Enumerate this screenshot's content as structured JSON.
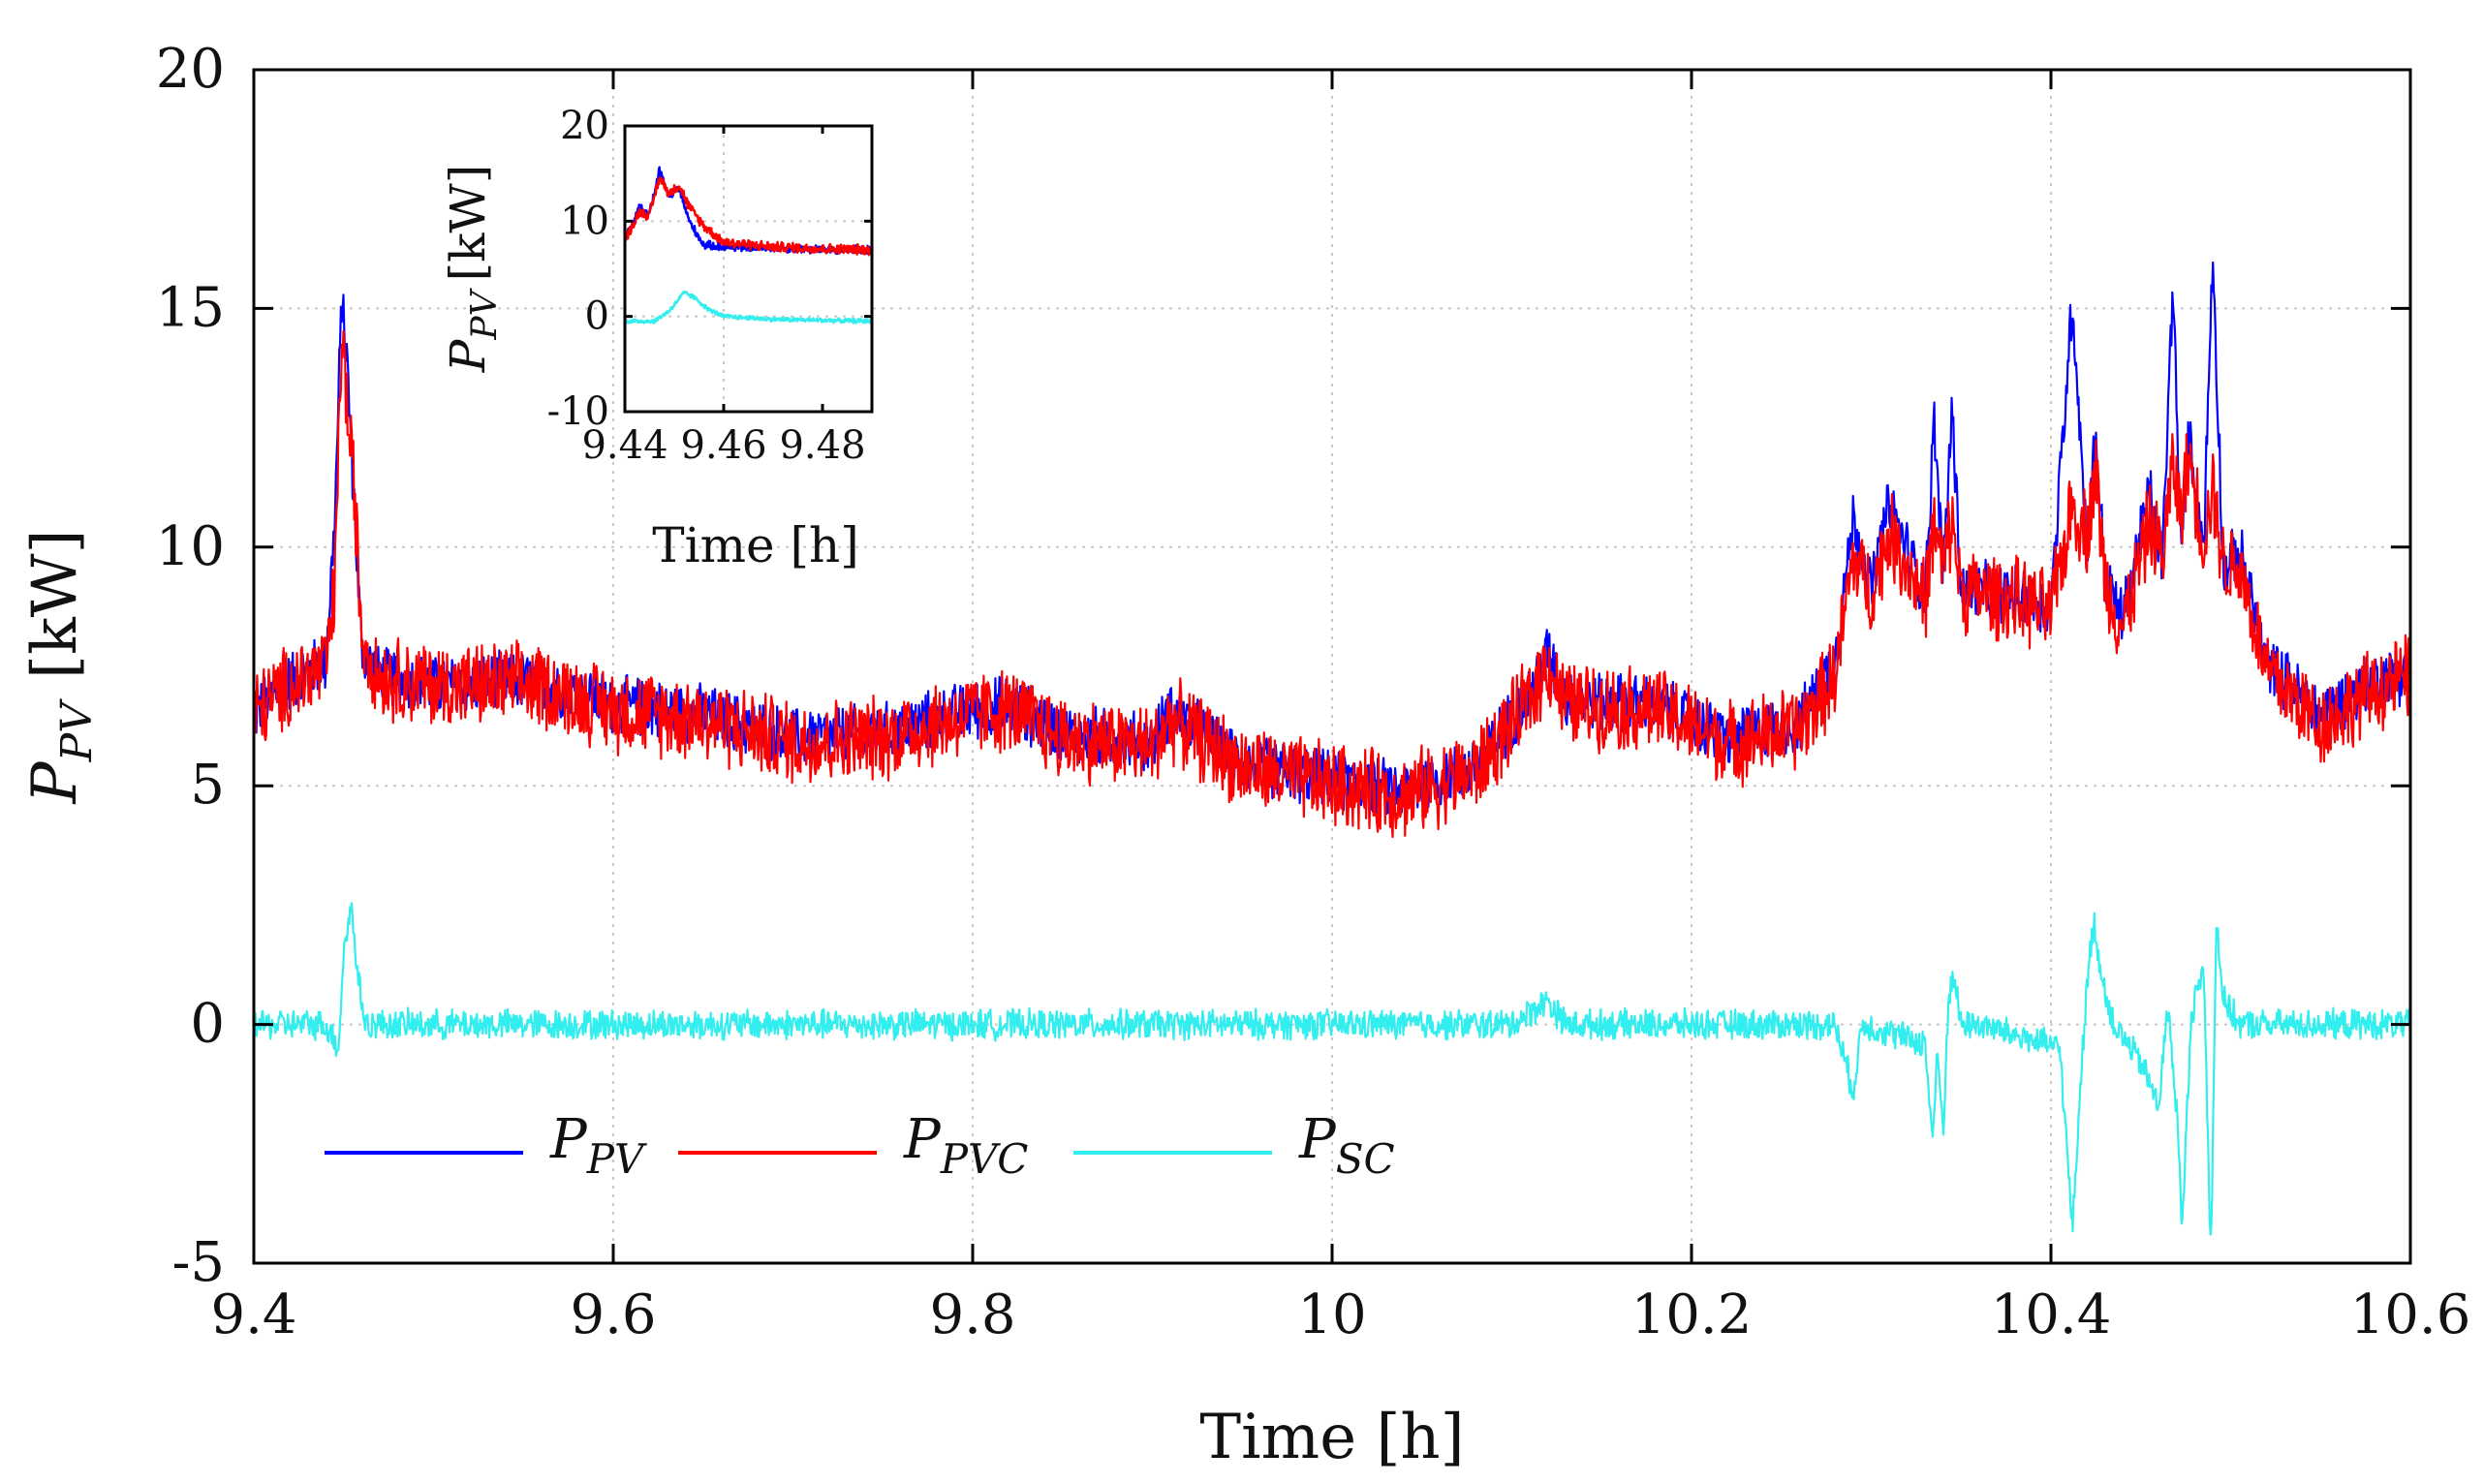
{
  "chart_data": [
    {
      "type": "line",
      "title": "",
      "xlabel": "Time [h]",
      "ylabel_main": "P",
      "ylabel_sub": "PV",
      "ylabel_unit": "[kW]",
      "xlim": [
        9.4,
        10.6
      ],
      "ylim": [
        -5,
        20
      ],
      "x_ticks": [
        9.4,
        9.6,
        9.8,
        10,
        10.2,
        10.4,
        10.6
      ],
      "x_tick_labels": [
        "9.4",
        "9.6",
        "9.8",
        "10",
        "10.2",
        "10.4",
        "10.6"
      ],
      "y_ticks": [
        -5,
        0,
        5,
        10,
        15,
        20
      ],
      "y_tick_labels": [
        "-5",
        "0",
        "5",
        "10",
        "15",
        "20"
      ],
      "grid": true,
      "legend_placement": "bottom-left",
      "series": [
        {
          "name": "P_PV",
          "label_main": "P",
          "label_sub": "PV",
          "color": "#0000ff",
          "noise": 0.7,
          "x": [
            9.4,
            9.42,
            9.44,
            9.445,
            9.449,
            9.452,
            9.456,
            9.46,
            9.47,
            9.5,
            9.56,
            9.6,
            9.65,
            9.7,
            9.75,
            9.8,
            9.82,
            9.85,
            9.9,
            9.91,
            9.95,
            10,
            10.04,
            10.08,
            10.11,
            10.12,
            10.13,
            10.18,
            10.22,
            10.26,
            10.28,
            10.29,
            10.3,
            10.31,
            10.33,
            10.335,
            10.34,
            10.345,
            10.35,
            10.38,
            10.4,
            10.412,
            10.42,
            10.425,
            10.43,
            10.44,
            10.455,
            10.462,
            10.468,
            10.472,
            10.477,
            10.485,
            10.49,
            10.496,
            10.505,
            10.52,
            10.55,
            10.58,
            10.6
          ],
          "y": [
            6.5,
            7.2,
            7.6,
            10.5,
            15.3,
            13.8,
            10.8,
            7.8,
            7.3,
            7.1,
            7.2,
            6.7,
            6.5,
            6.0,
            6.1,
            6.6,
            6.7,
            6.1,
            5.9,
            6.6,
            5.5,
            5.1,
            4.9,
            5.4,
            6.9,
            7.8,
            6.8,
            6.7,
            6.0,
            6.3,
            7.7,
            10.6,
            9.1,
            10.9,
            9.0,
            12.6,
            9.5,
            12.9,
            9.1,
            9.0,
            8.7,
            15.2,
            10.0,
            12.4,
            9.3,
            8.5,
            11.2,
            9.7,
            15.6,
            10.1,
            12.3,
            10.0,
            16.2,
            9.5,
            9.9,
            7.6,
            6.5,
            7.2,
            7.4
          ]
        },
        {
          "name": "P_PVC",
          "label_main": "P",
          "label_sub": "PVC",
          "color": "#ff0000",
          "noise": 1.0,
          "x": [
            9.4,
            9.42,
            9.44,
            9.445,
            9.449,
            9.452,
            9.456,
            9.46,
            9.47,
            9.5,
            9.56,
            9.6,
            9.65,
            9.7,
            9.75,
            9.8,
            9.82,
            9.85,
            9.9,
            9.91,
            9.95,
            10,
            10.04,
            10.08,
            10.11,
            10.12,
            10.13,
            10.18,
            10.22,
            10.26,
            10.28,
            10.29,
            10.3,
            10.31,
            10.33,
            10.335,
            10.34,
            10.345,
            10.35,
            10.38,
            10.4,
            10.412,
            10.42,
            10.425,
            10.43,
            10.44,
            10.455,
            10.462,
            10.468,
            10.472,
            10.477,
            10.485,
            10.49,
            10.496,
            10.505,
            10.52,
            10.55,
            10.58,
            10.6
          ],
          "y": [
            6.5,
            7.1,
            7.5,
            9.0,
            14.7,
            12.8,
            11.2,
            8.2,
            7.3,
            7.1,
            7.1,
            6.6,
            6.4,
            5.9,
            6.0,
            6.5,
            6.6,
            6.0,
            5.8,
            6.4,
            5.4,
            5.0,
            4.8,
            5.3,
            6.8,
            7.6,
            6.7,
            6.6,
            5.9,
            6.2,
            7.3,
            9.8,
            9.0,
            10.3,
            8.9,
            10.4,
            9.5,
            10.6,
            9.1,
            8.9,
            8.6,
            10.9,
            10.3,
            11.6,
            9.3,
            8.3,
            10.5,
            9.8,
            11.8,
            10.7,
            11.9,
            10.1,
            11.3,
            9.6,
            9.6,
            7.4,
            6.3,
            7.0,
            7.3
          ]
        },
        {
          "name": "P_SC",
          "label_main": "P",
          "label_sub": "SC",
          "color": "#33eeee",
          "noise": 0.35,
          "x": [
            9.4,
            9.44,
            9.447,
            9.45,
            9.454,
            9.458,
            9.462,
            9.5,
            9.9,
            10.1,
            10.12,
            10.13,
            10.28,
            10.29,
            10.295,
            10.33,
            10.334,
            10.337,
            10.34,
            10.343,
            10.346,
            10.35,
            10.36,
            10.405,
            10.412,
            10.416,
            10.42,
            10.424,
            10.428,
            10.435,
            10.45,
            10.46,
            10.465,
            10.47,
            10.473,
            10.478,
            10.485,
            10.489,
            10.492,
            10.496,
            10.505,
            10.55,
            10.6
          ],
          "y": [
            0,
            0,
            -0.5,
            1.5,
            2.5,
            1.0,
            0,
            0,
            0,
            0,
            0.5,
            0,
            0,
            -1.4,
            0,
            -0.4,
            -2.4,
            -0.6,
            -2.3,
            0.6,
            1.0,
            0,
            0,
            -0.5,
            -4.3,
            -1.5,
            0.8,
            2.2,
            1.0,
            0,
            -0.8,
            -1.7,
            0.4,
            -1.8,
            -4.3,
            0.2,
            1.2,
            -4.9,
            2.2,
            0.5,
            0,
            0,
            0
          ]
        }
      ]
    },
    {
      "type": "line",
      "title": "",
      "xlabel": "Time [h]",
      "ylabel_main": "P",
      "ylabel_sub": "PV",
      "ylabel_unit": "[kW]",
      "xlim": [
        9.44,
        9.49
      ],
      "ylim": [
        -10,
        20
      ],
      "x_ticks": [
        9.44,
        9.46,
        9.48
      ],
      "x_tick_labels": [
        "9.44",
        "9.46",
        "9.48"
      ],
      "y_ticks": [
        -10,
        0,
        10,
        20
      ],
      "y_tick_labels": [
        "-10",
        "0",
        "10",
        "20"
      ],
      "grid": true,
      "series": [
        {
          "name": "P_PV",
          "color": "#0000ff",
          "noise": 0.5,
          "x": [
            9.44,
            9.443,
            9.445,
            9.447,
            9.449,
            9.451,
            9.453,
            9.456,
            9.46,
            9.47,
            9.48,
            9.49
          ],
          "y": [
            8.0,
            11.5,
            10.8,
            15.3,
            12.5,
            13.5,
            10.0,
            7.5,
            7.3,
            7.2,
            7.0,
            7.0
          ]
        },
        {
          "name": "P_PVC",
          "color": "#ff0000",
          "noise": 0.6,
          "x": [
            9.44,
            9.443,
            9.445,
            9.447,
            9.449,
            9.451,
            9.453,
            9.456,
            9.46,
            9.47,
            9.48,
            9.49
          ],
          "y": [
            8.0,
            11.0,
            10.6,
            14.6,
            12.9,
            13.8,
            11.5,
            9.5,
            7.8,
            7.3,
            7.1,
            7.0
          ]
        },
        {
          "name": "P_SC",
          "color": "#33eeee",
          "noise": 0.25,
          "x": [
            9.44,
            9.446,
            9.449,
            9.452,
            9.454,
            9.457,
            9.46,
            9.47,
            9.49
          ],
          "y": [
            -0.5,
            -0.5,
            0.6,
            2.5,
            2.0,
            0.7,
            0,
            -0.3,
            -0.5
          ]
        }
      ]
    }
  ]
}
